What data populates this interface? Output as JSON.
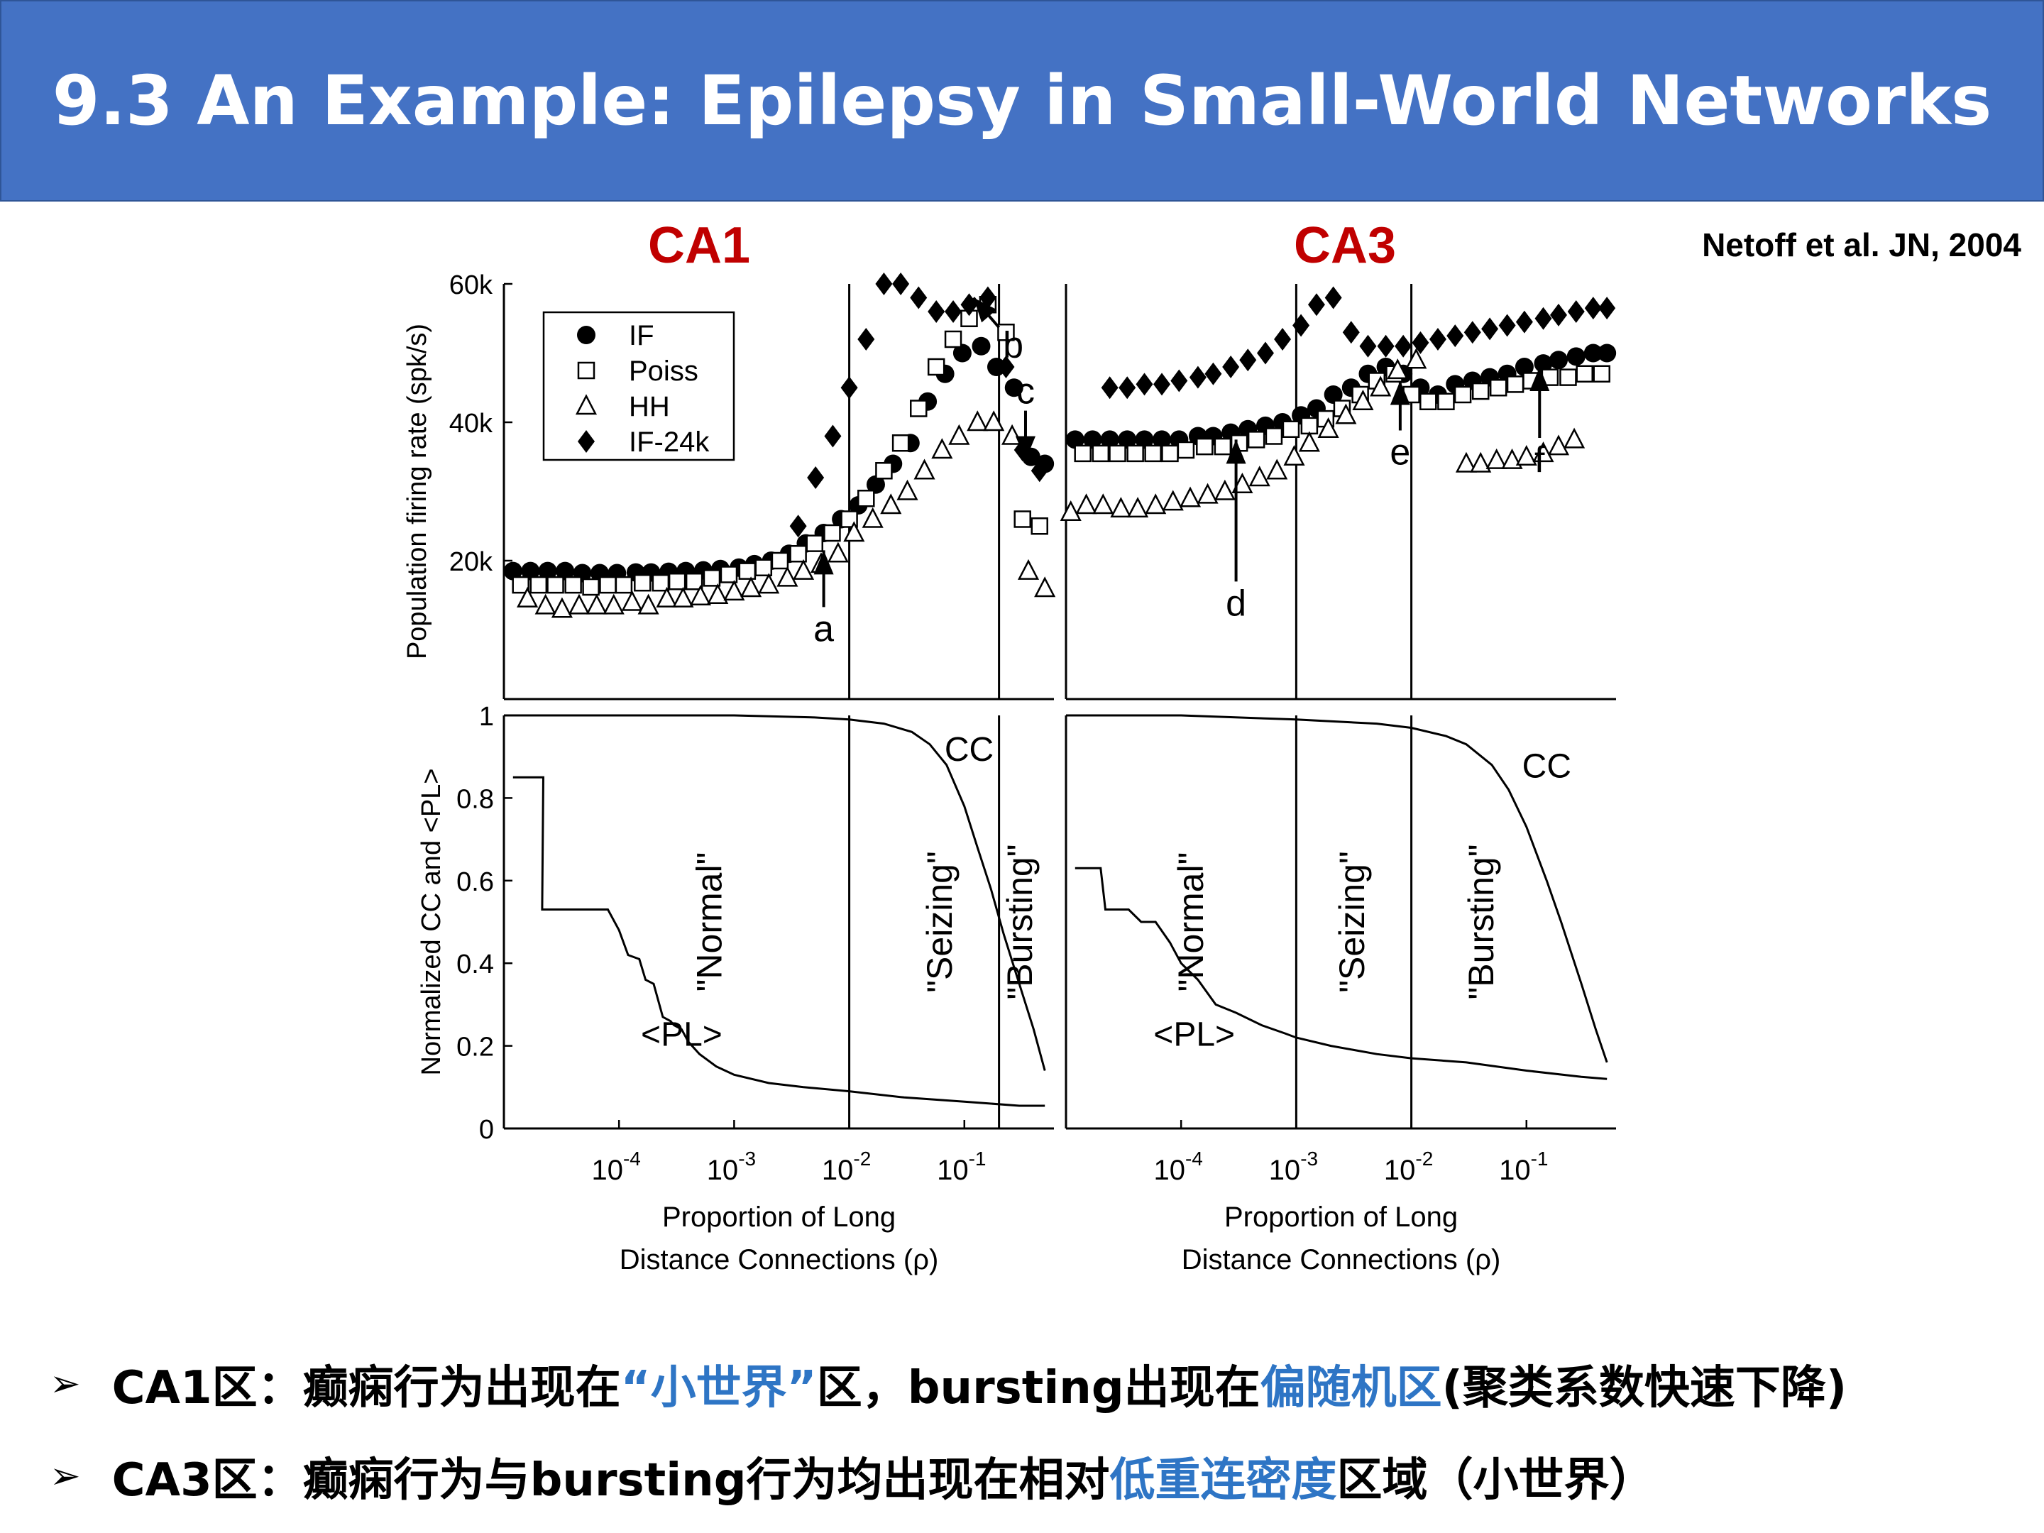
{
  "slide": {
    "title": "9.3 An Example: Epilepsy in Small-World Networks",
    "citation": "Netoff et al. JN, 2004",
    "accent_color": "#4472c4",
    "panel_title_color": "#c00000",
    "highlight_color": "#2e75c5"
  },
  "bullets": [
    {
      "marker": "➢",
      "segments": [
        {
          "text": "CA1区：癫痫行为出现在 ",
          "hl": false
        },
        {
          "text": "“小世界”",
          "hl": true
        },
        {
          "text": "区，bursting出现在",
          "hl": false
        },
        {
          "text": "偏随机区",
          "hl": true
        },
        {
          "text": "(聚类系数快速下降)",
          "hl": false
        }
      ]
    },
    {
      "marker": "➢",
      "segments": [
        {
          "text": "CA3区：癫痫行为与bursting行为均出现在相对",
          "hl": false
        },
        {
          "text": "低重连密度",
          "hl": true
        },
        {
          "text": "区域（小世界）",
          "hl": false
        }
      ]
    }
  ],
  "chart_data": [
    {
      "panel": "CA1",
      "title": "CA1",
      "type": "scatter",
      "x_scale": "log",
      "xlim": [
        1e-05,
        0.6
      ],
      "ylim": [
        0,
        60000
      ],
      "ylabel": "Population firing rate (spk/s)",
      "yticks": [
        {
          "v": 20000,
          "label": "20k"
        },
        {
          "v": 40000,
          "label": "40k"
        },
        {
          "v": 60000,
          "label": "60k"
        }
      ],
      "legend": {
        "placement": "top-left",
        "entries": [
          "IF",
          "Poiss",
          "HH",
          "IF-24k"
        ]
      },
      "regime_boundaries": [
        0.01,
        0.2
      ],
      "series": [
        {
          "name": "IF",
          "marker": "circle",
          "x": [
            1.2e-05,
            1.7e-05,
            2.4e-05,
            3.4e-05,
            4.8e-05,
            6.8e-05,
            9.6e-05,
            0.00014,
            0.00019,
            0.00027,
            0.00038,
            0.00054,
            0.00076,
            0.0011,
            0.0015,
            0.0021,
            0.003,
            0.0042,
            0.006,
            0.0085,
            0.012,
            0.017,
            0.024,
            0.034,
            0.048,
            0.068,
            0.096,
            0.14,
            0.19,
            0.27,
            0.38,
            0.5
          ],
          "y": [
            18500,
            18500,
            18500,
            18500,
            18200,
            18200,
            18200,
            18300,
            18300,
            18400,
            18500,
            18600,
            18800,
            19000,
            19500,
            20000,
            21000,
            22500,
            24000,
            26000,
            28000,
            31000,
            34000,
            37000,
            43000,
            47000,
            50000,
            51000,
            48000,
            45000,
            35000,
            34000
          ]
        },
        {
          "name": "Poiss",
          "marker": "square",
          "x": [
            1.4e-05,
            2e-05,
            2.8e-05,
            4e-05,
            5.7e-05,
            8e-05,
            0.00011,
            0.00016,
            0.00023,
            0.00032,
            0.00045,
            0.00064,
            0.0009,
            0.0013,
            0.0018,
            0.0025,
            0.0036,
            0.005,
            0.0071,
            0.01,
            0.014,
            0.02,
            0.028,
            0.04,
            0.057,
            0.08,
            0.11,
            0.16,
            0.23,
            0.32,
            0.45
          ],
          "y": [
            16500,
            16500,
            16500,
            16500,
            16200,
            16500,
            16500,
            16800,
            16800,
            17000,
            17000,
            17500,
            18000,
            18500,
            19000,
            20000,
            21000,
            22500,
            24000,
            26000,
            29000,
            33000,
            37000,
            42000,
            48000,
            52000,
            55000,
            57000,
            53000,
            26000,
            25000
          ]
        },
        {
          "name": "HH",
          "marker": "triangle",
          "x": [
            1.6e-05,
            2.3e-05,
            3.2e-05,
            4.5e-05,
            6.4e-05,
            9e-05,
            0.00013,
            0.00018,
            0.00026,
            0.00036,
            0.00051,
            0.00072,
            0.001,
            0.0014,
            0.002,
            0.0029,
            0.004,
            0.0057,
            0.008,
            0.011,
            0.016,
            0.023,
            0.032,
            0.045,
            0.064,
            0.09,
            0.13,
            0.18,
            0.26,
            0.36,
            0.5
          ],
          "y": [
            14500,
            13500,
            13000,
            13500,
            13500,
            13500,
            14000,
            13500,
            14500,
            14500,
            14800,
            15000,
            15500,
            16000,
            16500,
            17500,
            18500,
            19500,
            21000,
            24000,
            26000,
            28000,
            30000,
            33000,
            36000,
            38000,
            40000,
            40000,
            38000,
            18500,
            16000
          ]
        },
        {
          "name": "IF-24k",
          "marker": "diamond",
          "x": [
            0.0036,
            0.0051,
            0.0072,
            0.01,
            0.014,
            0.02,
            0.028,
            0.04,
            0.057,
            0.08,
            0.11,
            0.16,
            0.23,
            0.32,
            0.45
          ],
          "y": [
            25000,
            32000,
            38000,
            45000,
            52000,
            60000,
            60000,
            58000,
            56000,
            56000,
            57000,
            58000,
            48000,
            36000,
            33000
          ]
        }
      ],
      "annotations": [
        {
          "label": "a",
          "x": 0.006,
          "y": 21500,
          "dir": "up"
        },
        {
          "label": "b",
          "x": 0.12,
          "y": 58000,
          "dir": "diag"
        },
        {
          "label": "c",
          "x": 0.34,
          "y": 34500,
          "dir": "down"
        }
      ]
    },
    {
      "panel": "CA3",
      "title": "CA3",
      "type": "scatter",
      "x_scale": "log",
      "xlim": [
        1e-05,
        0.6
      ],
      "ylim": [
        0,
        60000
      ],
      "yticks": [],
      "regime_boundaries": [
        0.001,
        0.01
      ],
      "series": [
        {
          "name": "IF",
          "marker": "circle",
          "x": [
            1.2e-05,
            1.7e-05,
            2.4e-05,
            3.4e-05,
            4.8e-05,
            6.8e-05,
            9.6e-05,
            0.00014,
            0.00019,
            0.00027,
            0.00038,
            0.00054,
            0.00076,
            0.0011,
            0.0015,
            0.0021,
            0.003,
            0.0042,
            0.006,
            0.0085,
            0.012,
            0.017,
            0.024,
            0.034,
            0.048,
            0.068,
            0.096,
            0.14,
            0.19,
            0.27,
            0.38,
            0.5
          ],
          "y": [
            37500,
            37500,
            37500,
            37500,
            37500,
            37500,
            37500,
            38000,
            38000,
            38500,
            39000,
            39500,
            40000,
            41000,
            42000,
            44000,
            45000,
            47000,
            48000,
            47000,
            45000,
            44000,
            45500,
            46000,
            46500,
            47000,
            48000,
            48500,
            49000,
            49500,
            50000,
            50000
          ]
        },
        {
          "name": "Poiss",
          "marker": "square",
          "x": [
            1.4e-05,
            2e-05,
            2.8e-05,
            4e-05,
            5.7e-05,
            8e-05,
            0.00011,
            0.00016,
            0.00023,
            0.00032,
            0.00045,
            0.00064,
            0.0009,
            0.0013,
            0.0018,
            0.0025,
            0.0036,
            0.005,
            0.0071,
            0.01,
            0.014,
            0.02,
            0.028,
            0.04,
            0.057,
            0.08,
            0.11,
            0.16,
            0.23,
            0.32,
            0.45
          ],
          "y": [
            35500,
            35500,
            35500,
            35500,
            35500,
            35500,
            36000,
            36500,
            36500,
            37000,
            37500,
            38000,
            39000,
            39500,
            40500,
            42000,
            44000,
            46000,
            47000,
            44000,
            43000,
            43000,
            44000,
            44500,
            45000,
            45500,
            46000,
            46500,
            46500,
            47000,
            47000
          ]
        },
        {
          "name": "HH",
          "marker": "triangle",
          "x": [
            1.1e-05,
            1.5e-05,
            2.1e-05,
            3e-05,
            4.2e-05,
            6e-05,
            8.5e-05,
            0.00012,
            0.00017,
            0.00024,
            0.00034,
            0.00048,
            0.00068,
            0.00096,
            0.0013,
            0.0019,
            0.0027,
            0.0038,
            0.0054,
            0.0076,
            0.011,
            0.03,
            0.04,
            0.055,
            0.075,
            0.1,
            0.14,
            0.19,
            0.26
          ],
          "y": [
            27000,
            28000,
            28000,
            27500,
            27500,
            28000,
            28500,
            29000,
            29500,
            30000,
            31000,
            32000,
            33000,
            35000,
            37000,
            39000,
            41000,
            43000,
            45000,
            47500,
            49000,
            34000,
            34000,
            34500,
            34500,
            35000,
            35500,
            36500,
            37500
          ]
        },
        {
          "name": "IF-24k",
          "marker": "diamond",
          "x": [
            2.4e-05,
            3.4e-05,
            4.8e-05,
            6.8e-05,
            9.6e-05,
            0.00014,
            0.00019,
            0.00027,
            0.00038,
            0.00054,
            0.00076,
            0.0011,
            0.0015,
            0.0021,
            0.003,
            0.0042,
            0.006,
            0.0085,
            0.012,
            0.017,
            0.024,
            0.034,
            0.048,
            0.068,
            0.096,
            0.14,
            0.19,
            0.27,
            0.38,
            0.5
          ],
          "y": [
            45000,
            45000,
            45500,
            45500,
            46000,
            46500,
            47000,
            48000,
            49000,
            50000,
            52000,
            54000,
            57000,
            58000,
            53000,
            51000,
            51000,
            51000,
            51500,
            52000,
            52500,
            53000,
            53500,
            54000,
            54500,
            55000,
            55500,
            56000,
            56500,
            56500
          ]
        }
      ],
      "annotations": [
        {
          "label": "d",
          "x": 0.0003,
          "y": 37500,
          "dir": "up"
        },
        {
          "label": "e",
          "x": 0.008,
          "y": 46000,
          "dir": "up"
        },
        {
          "label": "f",
          "x": 0.13,
          "y": 48000,
          "dir": "up"
        }
      ]
    },
    {
      "panel": "CA1-topology",
      "type": "line",
      "x_scale": "log",
      "xlim": [
        1e-05,
        0.6
      ],
      "ylim": [
        0,
        1
      ],
      "ylabel": "Normalized CC and <PL>",
      "xlabel_line1": "Proportion of Long",
      "xlabel_line2": "Distance Connections (ρ)",
      "yticks": [
        {
          "v": 0,
          "label": "0"
        },
        {
          "v": 0.2,
          "label": "0.2"
        },
        {
          "v": 0.4,
          "label": "0.4"
        },
        {
          "v": 0.6,
          "label": "0.6"
        },
        {
          "v": 0.8,
          "label": "0.8"
        },
        {
          "v": 1,
          "label": "1"
        }
      ],
      "xticks": [
        {
          "v": 0.0001,
          "base": "10",
          "exp": "-4"
        },
        {
          "v": 0.001,
          "base": "10",
          "exp": "-3"
        },
        {
          "v": 0.01,
          "base": "10",
          "exp": "-2"
        },
        {
          "v": 0.1,
          "base": "10",
          "exp": "-1"
        }
      ],
      "regime_boundaries": [
        0.01,
        0.2
      ],
      "regimes": [
        {
          "label": "\"Normal\"",
          "x": 0.0006,
          "y": 0.5
        },
        {
          "label": "\"Seizing\"",
          "x": 0.06,
          "y": 0.5
        },
        {
          "label": "\"Bursting\"",
          "x": 0.3,
          "y": 0.5
        }
      ],
      "curve_labels": [
        {
          "label": "CC",
          "x": 0.11,
          "y": 0.89
        },
        {
          "label": "<PL>",
          "x": 0.00035,
          "y": 0.2
        }
      ],
      "series": [
        {
          "name": "CC",
          "x": [
            1e-05,
            0.0001,
            0.001,
            0.005,
            0.01,
            0.02,
            0.035,
            0.05,
            0.07,
            0.1,
            0.13,
            0.17,
            0.22,
            0.3,
            0.4,
            0.5
          ],
          "y": [
            1,
            1,
            1,
            0.995,
            0.99,
            0.98,
            0.96,
            0.93,
            0.88,
            0.78,
            0.68,
            0.58,
            0.47,
            0.35,
            0.24,
            0.14
          ]
        },
        {
          "name": "<PL>",
          "x": [
            1.2e-05,
            1.8e-05,
            2.2e-05,
            2.15e-05,
            3.5e-05,
            4.5e-05,
            8e-05,
            0.0001,
            0.00012,
            0.00015,
            0.00017,
            0.0002,
            0.00024,
            0.00028,
            0.0003,
            0.00035,
            0.0004,
            0.0005,
            0.0007,
            0.001,
            0.002,
            0.004,
            0.01,
            0.03,
            0.1,
            0.3,
            0.5
          ],
          "y": [
            0.85,
            0.85,
            0.85,
            0.53,
            0.53,
            0.53,
            0.53,
            0.48,
            0.42,
            0.41,
            0.36,
            0.35,
            0.27,
            0.26,
            0.25,
            0.24,
            0.21,
            0.18,
            0.15,
            0.13,
            0.11,
            0.1,
            0.09,
            0.075,
            0.065,
            0.055,
            0.055
          ]
        }
      ]
    },
    {
      "panel": "CA3-topology",
      "type": "line",
      "x_scale": "log",
      "xlim": [
        1e-05,
        0.6
      ],
      "ylim": [
        0,
        1
      ],
      "xlabel_line1": "Proportion of Long",
      "xlabel_line2": "Distance Connections (ρ)",
      "xticks": [
        {
          "v": 0.0001,
          "base": "10",
          "exp": "-4"
        },
        {
          "v": 0.001,
          "base": "10",
          "exp": "-3"
        },
        {
          "v": 0.01,
          "base": "10",
          "exp": "-2"
        },
        {
          "v": 0.1,
          "base": "10",
          "exp": "-1"
        }
      ],
      "regime_boundaries": [
        0.001,
        0.01
      ],
      "regimes": [
        {
          "label": "\"Normal\"",
          "x": 0.00012,
          "y": 0.5
        },
        {
          "label": "\"Seizing\"",
          "x": 0.003,
          "y": 0.5
        },
        {
          "label": "\"Bursting\"",
          "x": 0.04,
          "y": 0.5
        }
      ],
      "curve_labels": [
        {
          "label": "CC",
          "x": 0.15,
          "y": 0.85
        },
        {
          "label": "<PL>",
          "x": 0.00013,
          "y": 0.2
        }
      ],
      "series": [
        {
          "name": "CC",
          "x": [
            1e-05,
            0.0001,
            0.001,
            0.005,
            0.01,
            0.02,
            0.03,
            0.05,
            0.07,
            0.1,
            0.15,
            0.2,
            0.3,
            0.4,
            0.5
          ],
          "y": [
            1,
            1,
            0.99,
            0.98,
            0.97,
            0.95,
            0.93,
            0.88,
            0.82,
            0.73,
            0.6,
            0.5,
            0.35,
            0.24,
            0.16
          ]
        },
        {
          "name": "<PL>",
          "x": [
            1.2e-05,
            2e-05,
            2.2e-05,
            3.5e-05,
            4.5e-05,
            6e-05,
            8e-05,
            0.0001,
            0.00014,
            0.0002,
            0.0003,
            0.0005,
            0.0008,
            0.001,
            0.002,
            0.005,
            0.01,
            0.03,
            0.1,
            0.3,
            0.5
          ],
          "y": [
            0.63,
            0.63,
            0.53,
            0.53,
            0.5,
            0.5,
            0.45,
            0.4,
            0.36,
            0.3,
            0.28,
            0.25,
            0.23,
            0.22,
            0.2,
            0.18,
            0.17,
            0.16,
            0.14,
            0.125,
            0.12
          ]
        }
      ]
    }
  ]
}
